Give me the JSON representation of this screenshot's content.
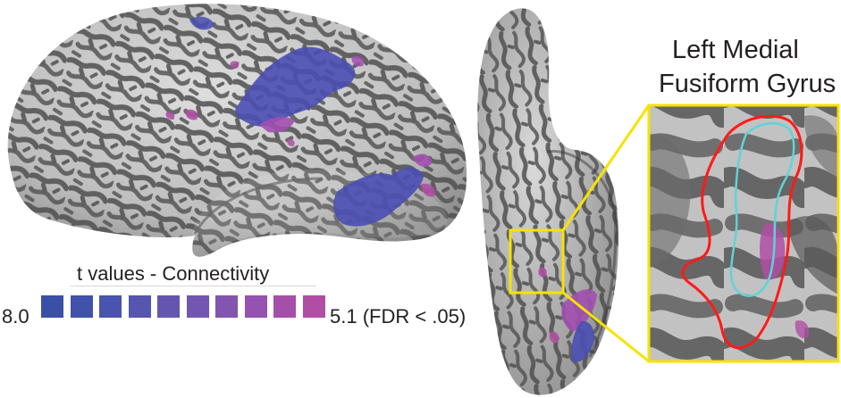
{
  "zoom_panel": {
    "title_line1": "Left Medial",
    "title_line2": "Fusiform Gyrus"
  },
  "legend": {
    "title": "t values - Connectivity",
    "max_label": "8.0",
    "min_label": "5.1 (FDR < .05)",
    "swatch_colors": [
      "#3b4fa6",
      "#4152ab",
      "#4a53ae",
      "#5655b0",
      "#6456b0",
      "#7356b0",
      "#8354b0",
      "#9552b0",
      "#a450ab",
      "#b04ea5"
    ]
  },
  "colors": {
    "brain_light": "#cfcfcf",
    "brain_dark": "#5a5a5a",
    "activation_blue": "#4a4fb3",
    "activation_magenta": "#b04ea5",
    "callout_yellow": "#f7e300",
    "roi_outline_red": "#ff1a1a",
    "roi_outline_cyan": "#5fd3d6"
  }
}
